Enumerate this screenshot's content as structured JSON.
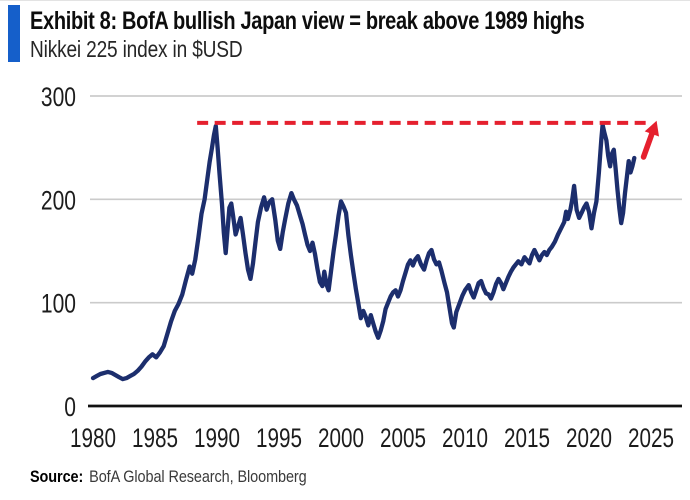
{
  "header": {
    "title": "Exhibit 8: BofA bullish Japan view = break above 1989 highs",
    "subtitle": "Nikkei 225 index in $USD",
    "accent_color": "#155fca"
  },
  "footer": {
    "source_label": "Source:",
    "source_text": "BofA Global Research, Bloomberg"
  },
  "chart_data": {
    "type": "line",
    "title": "Nikkei 225 index in $USD",
    "xlabel": "",
    "ylabel": "",
    "xlim": [
      1980,
      2025
    ],
    "ylim": [
      0,
      300
    ],
    "x_ticks": [
      1980,
      1985,
      1990,
      1995,
      2000,
      2005,
      2010,
      2015,
      2020,
      2025
    ],
    "y_ticks": [
      0,
      100,
      200,
      300
    ],
    "grid": "horizontal",
    "grid_color": "#cbcbcb",
    "axis_color": "#111111",
    "reference_line": {
      "meaning": "1989 high of Nikkei 225 in USD",
      "value": 274,
      "x_start": 1988.4,
      "x_end": 2024.7,
      "style": "dashed",
      "color": "#e5202e"
    },
    "annotation_arrow": {
      "meaning": "projected break above 1989 highs",
      "from": [
        2024.4,
        241
      ],
      "to": [
        2025.45,
        276
      ],
      "color": "#e5202e"
    },
    "series": [
      {
        "name": "Nikkei 225 index in $USD",
        "color": "#1c2e6d",
        "points": [
          [
            1980.0,
            27
          ],
          [
            1980.3,
            29
          ],
          [
            1980.6,
            31
          ],
          [
            1980.9,
            32
          ],
          [
            1981.2,
            33
          ],
          [
            1981.5,
            32
          ],
          [
            1981.8,
            30
          ],
          [
            1982.1,
            28
          ],
          [
            1982.4,
            26
          ],
          [
            1982.7,
            27
          ],
          [
            1983.0,
            29
          ],
          [
            1983.3,
            31
          ],
          [
            1983.6,
            34
          ],
          [
            1983.9,
            38
          ],
          [
            1984.2,
            43
          ],
          [
            1984.5,
            47
          ],
          [
            1984.8,
            50
          ],
          [
            1985.1,
            47
          ],
          [
            1985.4,
            52
          ],
          [
            1985.7,
            58
          ],
          [
            1986.0,
            70
          ],
          [
            1986.3,
            82
          ],
          [
            1986.6,
            92
          ],
          [
            1986.9,
            99
          ],
          [
            1987.2,
            108
          ],
          [
            1987.5,
            122
          ],
          [
            1987.8,
            135
          ],
          [
            1988.0,
            128
          ],
          [
            1988.25,
            142
          ],
          [
            1988.5,
            163
          ],
          [
            1988.75,
            186
          ],
          [
            1989.0,
            200
          ],
          [
            1989.2,
            218
          ],
          [
            1989.4,
            236
          ],
          [
            1989.6,
            250
          ],
          [
            1989.75,
            262
          ],
          [
            1989.9,
            271
          ],
          [
            1990.05,
            250
          ],
          [
            1990.2,
            225
          ],
          [
            1990.4,
            195
          ],
          [
            1990.55,
            168
          ],
          [
            1990.7,
            148
          ],
          [
            1990.85,
            170
          ],
          [
            1991.0,
            192
          ],
          [
            1991.15,
            196
          ],
          [
            1991.3,
            184
          ],
          [
            1991.5,
            166
          ],
          [
            1991.7,
            174
          ],
          [
            1991.9,
            182
          ],
          [
            1992.1,
            166
          ],
          [
            1992.3,
            148
          ],
          [
            1992.5,
            132
          ],
          [
            1992.7,
            123
          ],
          [
            1992.9,
            138
          ],
          [
            1993.1,
            158
          ],
          [
            1993.3,
            178
          ],
          [
            1993.55,
            192
          ],
          [
            1993.8,
            202
          ],
          [
            1994.0,
            190
          ],
          [
            1994.2,
            197
          ],
          [
            1994.45,
            200
          ],
          [
            1994.7,
            180
          ],
          [
            1994.9,
            160
          ],
          [
            1995.1,
            152
          ],
          [
            1995.3,
            168
          ],
          [
            1995.5,
            181
          ],
          [
            1995.75,
            196
          ],
          [
            1996.0,
            206
          ],
          [
            1996.2,
            200
          ],
          [
            1996.45,
            194
          ],
          [
            1996.7,
            184
          ],
          [
            1996.9,
            176
          ],
          [
            1997.1,
            166
          ],
          [
            1997.3,
            156
          ],
          [
            1997.5,
            150
          ],
          [
            1997.7,
            158
          ],
          [
            1997.9,
            147
          ],
          [
            1998.1,
            133
          ],
          [
            1998.3,
            120
          ],
          [
            1998.5,
            116
          ],
          [
            1998.65,
            130
          ],
          [
            1998.85,
            117
          ],
          [
            1999.0,
            112
          ],
          [
            1999.2,
            131
          ],
          [
            1999.4,
            150
          ],
          [
            1999.6,
            166
          ],
          [
            1999.8,
            184
          ],
          [
            2000.0,
            198
          ],
          [
            2000.2,
            193
          ],
          [
            2000.4,
            187
          ],
          [
            2000.6,
            165
          ],
          [
            2000.8,
            146
          ],
          [
            2001.0,
            129
          ],
          [
            2001.2,
            113
          ],
          [
            2001.4,
            99
          ],
          [
            2001.6,
            85
          ],
          [
            2001.8,
            92
          ],
          [
            2002.0,
            86
          ],
          [
            2002.2,
            78
          ],
          [
            2002.4,
            88
          ],
          [
            2002.6,
            80
          ],
          [
            2002.8,
            72
          ],
          [
            2003.0,
            66
          ],
          [
            2003.2,
            73
          ],
          [
            2003.4,
            82
          ],
          [
            2003.6,
            94
          ],
          [
            2003.8,
            100
          ],
          [
            2004.0,
            106
          ],
          [
            2004.2,
            110
          ],
          [
            2004.4,
            112
          ],
          [
            2004.6,
            106
          ],
          [
            2004.8,
            112
          ],
          [
            2005.0,
            121
          ],
          [
            2005.2,
            129
          ],
          [
            2005.4,
            137
          ],
          [
            2005.6,
            141
          ],
          [
            2005.8,
            136
          ],
          [
            2006.0,
            142
          ],
          [
            2006.2,
            145
          ],
          [
            2006.45,
            137
          ],
          [
            2006.7,
            132
          ],
          [
            2006.9,
            141
          ],
          [
            2007.1,
            148
          ],
          [
            2007.3,
            151
          ],
          [
            2007.5,
            142
          ],
          [
            2007.7,
            137
          ],
          [
            2007.9,
            139
          ],
          [
            2008.1,
            131
          ],
          [
            2008.35,
            119
          ],
          [
            2008.55,
            110
          ],
          [
            2008.75,
            95
          ],
          [
            2008.95,
            80
          ],
          [
            2009.1,
            76
          ],
          [
            2009.3,
            91
          ],
          [
            2009.55,
            99
          ],
          [
            2009.8,
            107
          ],
          [
            2010.0,
            112
          ],
          [
            2010.3,
            117
          ],
          [
            2010.5,
            110
          ],
          [
            2010.7,
            105
          ],
          [
            2010.9,
            112
          ],
          [
            2011.1,
            119
          ],
          [
            2011.3,
            121
          ],
          [
            2011.5,
            114
          ],
          [
            2011.7,
            109
          ],
          [
            2011.9,
            108
          ],
          [
            2012.1,
            104
          ],
          [
            2012.3,
            110
          ],
          [
            2012.5,
            118
          ],
          [
            2012.7,
            123
          ],
          [
            2012.9,
            119
          ],
          [
            2013.1,
            113
          ],
          [
            2013.3,
            119
          ],
          [
            2013.5,
            125
          ],
          [
            2013.7,
            130
          ],
          [
            2013.9,
            134
          ],
          [
            2014.1,
            137
          ],
          [
            2014.3,
            140
          ],
          [
            2014.55,
            137
          ],
          [
            2014.8,
            144
          ],
          [
            2015.0,
            141
          ],
          [
            2015.2,
            138
          ],
          [
            2015.4,
            146
          ],
          [
            2015.6,
            151
          ],
          [
            2015.8,
            146
          ],
          [
            2016.0,
            141
          ],
          [
            2016.2,
            146
          ],
          [
            2016.4,
            149
          ],
          [
            2016.6,
            146
          ],
          [
            2016.8,
            151
          ],
          [
            2017.0,
            154
          ],
          [
            2017.25,
            159
          ],
          [
            2017.5,
            166
          ],
          [
            2017.75,
            172
          ],
          [
            2018.0,
            178
          ],
          [
            2018.15,
            188
          ],
          [
            2018.3,
            181
          ],
          [
            2018.5,
            190
          ],
          [
            2018.65,
            200
          ],
          [
            2018.8,
            213
          ],
          [
            2019.0,
            190
          ],
          [
            2019.2,
            182
          ],
          [
            2019.4,
            187
          ],
          [
            2019.6,
            192
          ],
          [
            2019.8,
            196
          ],
          [
            2020.0,
            188
          ],
          [
            2020.2,
            172
          ],
          [
            2020.4,
            187
          ],
          [
            2020.6,
            198
          ],
          [
            2020.8,
            226
          ],
          [
            2021.0,
            259
          ],
          [
            2021.1,
            272
          ],
          [
            2021.25,
            264
          ],
          [
            2021.4,
            257
          ],
          [
            2021.55,
            242
          ],
          [
            2021.7,
            232
          ],
          [
            2021.85,
            244
          ],
          [
            2022.0,
            248
          ],
          [
            2022.15,
            229
          ],
          [
            2022.3,
            209
          ],
          [
            2022.45,
            191
          ],
          [
            2022.6,
            177
          ],
          [
            2022.75,
            187
          ],
          [
            2022.9,
            206
          ],
          [
            2023.05,
            221
          ],
          [
            2023.2,
            237
          ],
          [
            2023.35,
            226
          ],
          [
            2023.5,
            232
          ],
          [
            2023.65,
            240
          ]
        ]
      }
    ]
  }
}
